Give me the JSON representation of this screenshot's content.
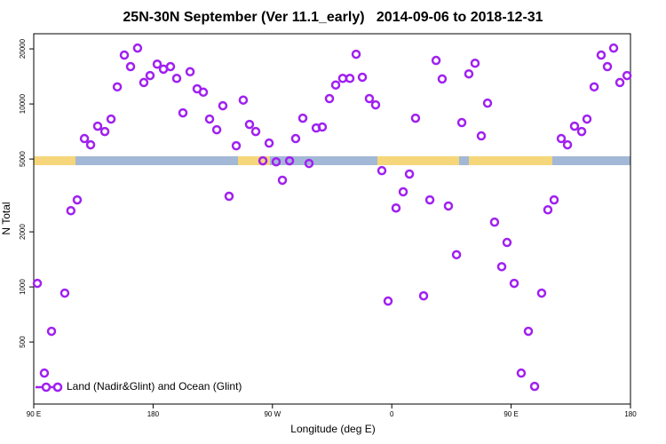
{
  "chart_data": {
    "type": "scatter",
    "title": "25N-30N September (Ver 11.1_early)   2014-09-06 to 2018-12-31",
    "x_label": "Longitude (deg E)",
    "y_label": "N Total",
    "log_y": true,
    "legend": "bottom-left",
    "xlim": [
      90,
      540
    ],
    "xticks": [
      {
        "value": 90,
        "label": "90 E"
      },
      180,
      {
        "value": 270,
        "label": "90 W"
      },
      {
        "value": 360,
        "label": "0"
      },
      {
        "value": 450,
        "label": "90 E"
      },
      {
        "value": 540,
        "label": "180"
      }
    ],
    "ylim": [
      229,
      24200
    ],
    "yticks": [
      500,
      1000,
      2000,
      5000,
      10000,
      20000
    ],
    "series": [
      {
        "name": "Land (Nadir&Glint) and Ocean (Glint)",
        "color": "#a020f0",
        "x": [
          92.7,
          98,
          103.4,
          108,
          113.4,
          118,
          122.8,
          128.2,
          132.9,
          138.2,
          143.6,
          148.3,
          153,
          158.3,
          163,
          168.3,
          173,
          177.7,
          183.1,
          187.8,
          193.1,
          197.8,
          202.5,
          207.9,
          213.2,
          217.9,
          222.6,
          228,
          232.6,
          237.3,
          242.7,
          248,
          252.7,
          257.4,
          262.8,
          267.5,
          272.8,
          277.5,
          282.9,
          287.5,
          292.9,
          297.6,
          303,
          307.6,
          313,
          317.7,
          323,
          328.4,
          333.1,
          337.8,
          343.1,
          347.8,
          352.5,
          357.2,
          363.2,
          368.6,
          373.3,
          377.9,
          384,
          388.7,
          393.4,
          398,
          402.7,
          408.8,
          412.8,
          418.1,
          422.8,
          427.5,
          432.2,
          437.5,
          442.9,
          446.9,
          452.3,
          457.6,
          463,
          467.7,
          473,
          477.7,
          482.4,
          487.8,
          492.5,
          497.8,
          503.2,
          507.2,
          512.6,
          517.9,
          522.6,
          527.3,
          532,
          537.4
        ],
        "values": [
          1046,
          338,
          572,
          283,
          925,
          2610,
          2990,
          6470,
          5980,
          7560,
          7070,
          8270,
          12400,
          18500,
          16000,
          20200,
          13100,
          14300,
          16500,
          15500,
          16000,
          13800,
          8940,
          15000,
          12100,
          11600,
          8270,
          7230,
          9780,
          3130,
          5910,
          10500,
          7730,
          7070,
          4890,
          6110,
          4830,
          3830,
          4890,
          6470,
          8360,
          4730,
          7390,
          7480,
          10700,
          12700,
          13800,
          13800,
          18700,
          14000,
          10700,
          9890,
          4320,
          837,
          2700,
          3310,
          4140,
          8360,
          894,
          2990,
          17300,
          13700,
          2770,
          1500,
          7910,
          14600,
          16700,
          6690,
          10100,
          2260,
          1290,
          1750,
          1046,
          338,
          572,
          286,
          925,
          2640,
          2990,
          6470,
          5980,
          7560,
          7070,
          8270,
          12400,
          18500,
          16000,
          20200,
          13100,
          14300
        ]
      }
    ]
  }
}
